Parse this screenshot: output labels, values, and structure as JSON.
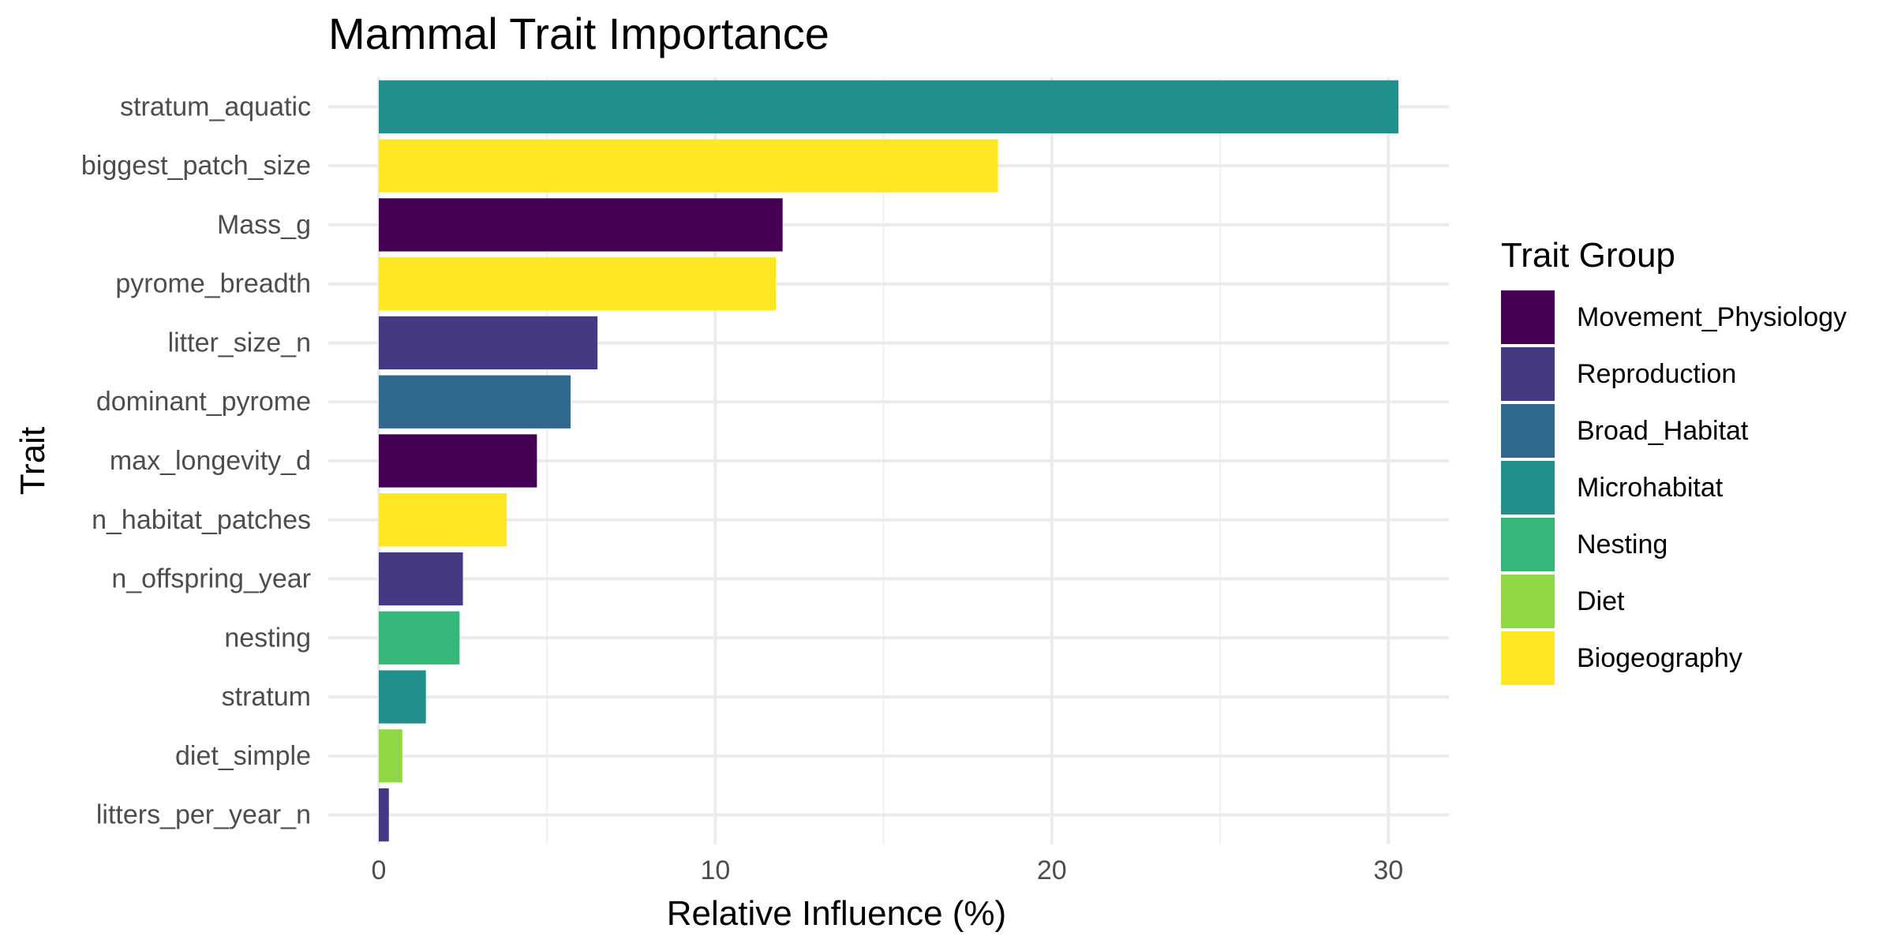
{
  "chart_data": {
    "type": "bar",
    "orientation": "horizontal",
    "title": "Mammal Trait Importance",
    "xlabel": "Relative Influence (%)",
    "ylabel": "Trait",
    "xlim": [
      -1.5,
      31.8
    ],
    "xticks": [
      0,
      10,
      20,
      30
    ],
    "grid": true,
    "legend": {
      "title": "Trait Group",
      "placement": "right",
      "entries": [
        {
          "name": "Movement_Physiology",
          "color": "#440154"
        },
        {
          "name": "Reproduction",
          "color": "#443A83"
        },
        {
          "name": "Broad_Habitat",
          "color": "#31688E"
        },
        {
          "name": "Microhabitat",
          "color": "#21908C"
        },
        {
          "name": "Nesting",
          "color": "#35B779"
        },
        {
          "name": "Diet",
          "color": "#8FD744"
        },
        {
          "name": "Biogeography",
          "color": "#FDE725"
        }
      ]
    },
    "categories": [
      "stratum_aquatic",
      "biggest_patch_size",
      "Mass_g",
      "pyrome_breadth",
      "litter_size_n",
      "dominant_pyrome",
      "max_longevity_d",
      "n_habitat_patches",
      "n_offspring_year",
      "nesting",
      "stratum",
      "diet_simple",
      "litters_per_year_n"
    ],
    "values": [
      30.3,
      18.4,
      12.0,
      11.8,
      6.5,
      5.7,
      4.7,
      3.8,
      2.5,
      2.4,
      1.4,
      0.7,
      0.3
    ],
    "groups": [
      "Microhabitat",
      "Biogeography",
      "Movement_Physiology",
      "Biogeography",
      "Reproduction",
      "Broad_Habitat",
      "Movement_Physiology",
      "Biogeography",
      "Reproduction",
      "Nesting",
      "Microhabitat",
      "Diet",
      "Reproduction"
    ]
  }
}
